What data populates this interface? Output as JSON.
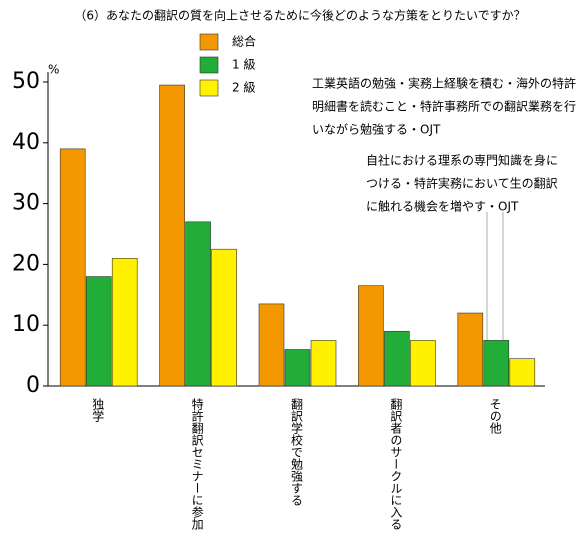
{
  "chart_data": {
    "type": "bar",
    "title": "（6）あなたの翻訳の質を向上させるために今後どのような方策をとりたいですか？",
    "y_unit": "%",
    "categories": [
      "独学",
      "特許翻訳セミナーに参加",
      "翻訳学校で勉強する",
      "翻訳者のサークルに入る",
      "その他"
    ],
    "series": [
      {
        "name": "総合",
        "color": "#f39800",
        "values": [
          39,
          49.5,
          13.5,
          16.5,
          12
        ]
      },
      {
        "name": "1 級",
        "color": "#22ac38",
        "values": [
          18,
          27,
          6,
          9,
          7.5
        ]
      },
      {
        "name": "2 級",
        "color": "#fff100",
        "values": [
          21,
          22.5,
          7.5,
          7.5,
          4.5
        ]
      }
    ],
    "ylim": [
      0,
      50
    ],
    "yticks": [
      0,
      10,
      20,
      30,
      40,
      50
    ],
    "annotations": [
      {
        "lines": [
          "工業英語の勉強・実務上経験を積む・海外の特許",
          "明細書を読むこと・特許事務所での翻訳業務を行",
          "いながら勉強する・OJT"
        ]
      },
      {
        "lines": [
          "自社における理系の専門知識を身に",
          "つける・特許実務において生の翻訳",
          "に触れる機会を増やす・OJT"
        ]
      }
    ]
  }
}
